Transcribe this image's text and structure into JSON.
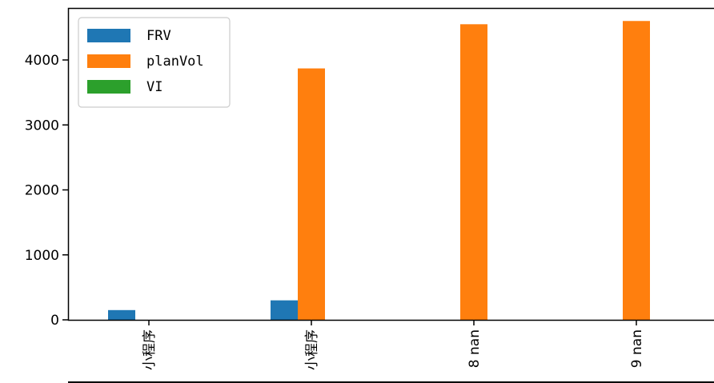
{
  "chart_data": {
    "type": "bar",
    "title": "",
    "xlabel": "",
    "ylabel": "",
    "categories": [
      "小程序",
      "小程序",
      "8 nan",
      "9 nan"
    ],
    "series": [
      {
        "name": "FRV",
        "color": "#1f77b4",
        "values": [
          150,
          300,
          0,
          0
        ]
      },
      {
        "name": "planVol",
        "color": "#ff7f0e",
        "values": [
          0,
          3870,
          4550,
          4600
        ]
      },
      {
        "name": "VI",
        "color": "#2ca02c",
        "values": [
          0,
          0,
          0,
          0
        ]
      }
    ],
    "yticks": [
      0,
      1000,
      2000,
      3000,
      4000
    ],
    "ylim": [
      0,
      4800
    ],
    "legend_position": "top-left",
    "grid": false
  }
}
